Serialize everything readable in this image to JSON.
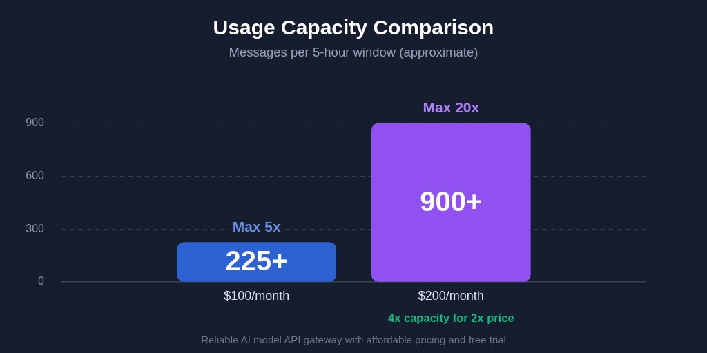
{
  "chart_data": {
    "type": "bar",
    "title": "Usage Capacity Comparison",
    "subtitle": "Messages per 5-hour window (approximate)",
    "categories": [
      "$100/month",
      "$200/month"
    ],
    "series": [
      {
        "name": "Max 5x",
        "color": "#2c62d2",
        "values": [
          225,
          null
        ],
        "value_labels": [
          "225+",
          null
        ]
      },
      {
        "name": "Max 20x",
        "color": "#9150f2",
        "values": [
          null,
          900
        ],
        "value_labels": [
          null,
          "900+"
        ]
      }
    ],
    "ylim": [
      0,
      900
    ],
    "yticks": [
      0,
      300,
      600,
      900
    ],
    "grid": "y",
    "legend": false,
    "annotations": [
      "4x capacity for 2x price",
      "Reliable AI model API gateway with affordable pricing and free trial"
    ]
  }
}
